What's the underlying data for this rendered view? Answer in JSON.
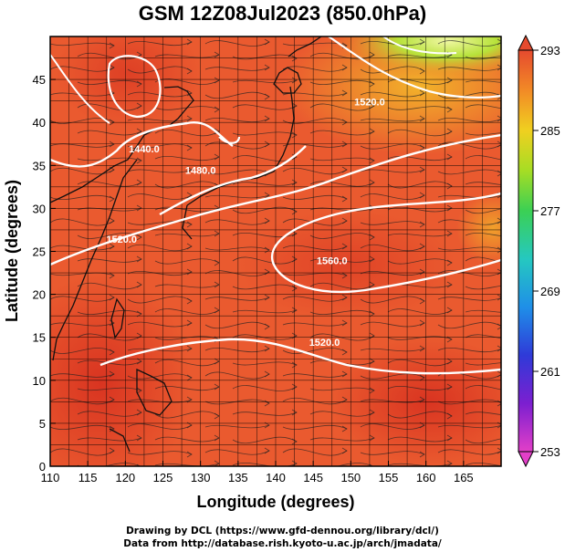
{
  "title": "GSM 12Z08Jul2023 (850.0hPa)",
  "xlabel": "Longitude (degrees)",
  "ylabel": "Latitude  (degrees)",
  "x_ticks": [
    "110",
    "115",
    "120",
    "125",
    "130",
    "135",
    "140",
    "145",
    "150",
    "155",
    "160",
    "165"
  ],
  "y_ticks": [
    "0",
    "5",
    "10",
    "15",
    "20",
    "25",
    "30",
    "35",
    "40",
    "45"
  ],
  "colorbar": {
    "ticks": [
      "293",
      "285",
      "277",
      "269",
      "261",
      "253"
    ],
    "min": 253,
    "max": 293
  },
  "contour_labels": [
    {
      "text": "1440.0",
      "lon": 122.5,
      "lat": 36.5
    },
    {
      "text": "1480.0",
      "lon": 130.0,
      "lat": 34.0
    },
    {
      "text": "1520.0",
      "lon": 119.5,
      "lat": 26.0
    },
    {
      "text": "1520.0",
      "lon": 152.5,
      "lat": 42.0
    },
    {
      "text": "1560.0",
      "lon": 147.5,
      "lat": 23.5
    },
    {
      "text": "1520.0",
      "lon": 146.5,
      "lat": 14.0
    }
  ],
  "footer": {
    "line1": "Drawing by DCL (https://www.gfd-dennou.org/library/dcl/)",
    "line2": "Data from http://database.rish.kyoto-u.ac.jp/arch/jmadata/"
  },
  "colors": {
    "warm": "#e8502f",
    "hot": "#d93a2a",
    "cool": "#9fd43a",
    "coast": "#111111",
    "contour": "#ffffff"
  }
}
